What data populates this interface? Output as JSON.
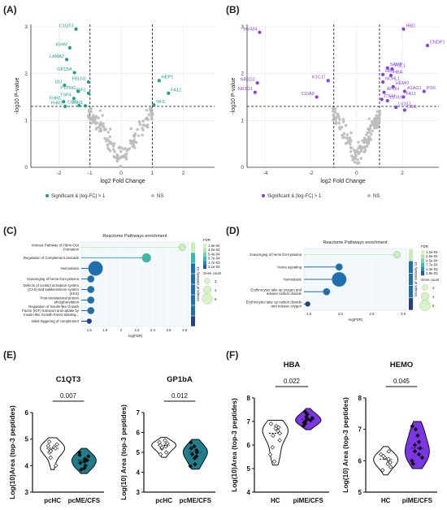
{
  "figure": {
    "panels": {
      "A": {
        "letter": "(A)"
      },
      "B": {
        "letter": "(B)"
      },
      "C": {
        "letter": "(C)"
      },
      "D": {
        "letter": "(D)"
      },
      "E": {
        "letter": "(E)"
      },
      "F": {
        "letter": "(F)"
      }
    }
  },
  "colors": {
    "sig_teal": "#1aa38a",
    "sig_purple": "#8a3ee6",
    "ns_grey": "#bdbdbd",
    "violin_fill": "#1f7d8c",
    "violin_light": "#ffffff",
    "violin_purple": "#7c35e6",
    "lollipop_light": "#c9efb8",
    "lollipop_mid": "#38b9ae",
    "lollipop_dark": "#1f6fb0",
    "lollipop_navy": "#243f8e"
  },
  "chart_data": [
    {
      "id": "A",
      "type": "scatter",
      "xlabel": "log2 Fold Change",
      "ylabel": "-log10 P-value",
      "xlim": [
        -2.9,
        3.0
      ],
      "ylim": [
        0,
        3.05
      ],
      "xticks": [
        -2,
        -1,
        0,
        1,
        2
      ],
      "yticks": [
        0,
        1,
        2,
        3
      ],
      "threshold_x": [
        -1,
        1
      ],
      "threshold_y": 1.3,
      "legend": [
        "Significant & |log-FC| > 1",
        "NS"
      ],
      "legend_position": "bottom",
      "significant": [
        {
          "label": "C1QT3",
          "x": -1.45,
          "y": 2.95
        },
        {
          "label": "IGHM",
          "x": -1.65,
          "y": 2.55
        },
        {
          "label": "LAMA2",
          "x": -1.75,
          "y": 2.3
        },
        {
          "label": "GP1BA",
          "x": -1.5,
          "y": 2.02
        },
        {
          "label": "FBLN1",
          "x": -1.05,
          "y": 1.82
        },
        {
          "label": "IGJ",
          "x": -1.82,
          "y": 1.75
        },
        {
          "label": "PTPRG",
          "x": -1.38,
          "y": 1.62
        },
        {
          "label": "IGF1",
          "x": -1.05,
          "y": 1.58
        },
        {
          "label": "TSP4",
          "x": -1.52,
          "y": 1.47
        },
        {
          "label": "FHR1",
          "x": -1.85,
          "y": 1.4
        },
        {
          "label": "FHR2",
          "x": -1.8,
          "y": 1.3
        },
        {
          "label": "CO5",
          "x": -1.35,
          "y": 1.32
        },
        {
          "label": "ITIH1",
          "x": -1.15,
          "y": 1.31
        },
        {
          "label": "HEP2",
          "x": 1.22,
          "y": 1.85
        },
        {
          "label": "FA12",
          "x": 1.52,
          "y": 1.58
        },
        {
          "label": "NFC",
          "x": 1.05,
          "y": 1.33
        }
      ],
      "ns_cloud": {
        "n": 140
      }
    },
    {
      "id": "B",
      "type": "scatter",
      "xlabel": "log2 Fold Change",
      "ylabel": "-log10 P-value",
      "xlim": [
        -4.8,
        3.6
      ],
      "ylim": [
        0,
        3.05
      ],
      "xticks": [
        -4,
        -2,
        0,
        2
      ],
      "yticks": [
        0,
        1,
        2,
        3
      ],
      "threshold_x": [
        -1,
        1
      ],
      "threshold_y": 1.3,
      "legend": [
        "Significant & |log-FC| > 1",
        "NS"
      ],
      "legend_position": "bottom",
      "significant": [
        {
          "label": "HBD",
          "x": 2.05,
          "y": 2.95
        },
        {
          "label": "HV434",
          "x": -4.25,
          "y": 2.88
        },
        {
          "label": "CNDP1",
          "x": 3.1,
          "y": 2.6
        },
        {
          "label": "SAMP",
          "x": 1.35,
          "y": 2.12
        },
        {
          "label": "FGL1",
          "x": 1.55,
          "y": 2.1
        },
        {
          "label": "HBB",
          "x": 1.15,
          "y": 1.98
        },
        {
          "label": "HBA",
          "x": 1.5,
          "y": 1.96
        },
        {
          "label": "K1C17",
          "x": -1.25,
          "y": 1.85
        },
        {
          "label": "NR1D2",
          "x": -4.35,
          "y": 1.8
        },
        {
          "label": "NCHL1",
          "x": 1.15,
          "y": 1.82
        },
        {
          "label": "HEMO",
          "x": 1.6,
          "y": 1.72
        },
        {
          "label": "PI16",
          "x": 2.95,
          "y": 1.62
        },
        {
          "label": "A1AG1",
          "x": 2.1,
          "y": 1.62
        },
        {
          "label": "APOH",
          "x": 1.2,
          "y": 1.6
        },
        {
          "label": "NR1D1",
          "x": -4.45,
          "y": 1.6
        },
        {
          "label": "S10A9",
          "x": -1.75,
          "y": 1.5
        },
        {
          "label": "FA11",
          "x": 2.05,
          "y": 1.5
        },
        {
          "label": "ITIH4",
          "x": 1.1,
          "y": 1.45
        },
        {
          "label": "LV316",
          "x": 1.35,
          "y": 1.42
        },
        {
          "label": "LV327",
          "x": 1.72,
          "y": 1.28
        },
        {
          "label": "CBG",
          "x": 2.1,
          "y": 1.22
        }
      ],
      "ns_cloud": {
        "n": 150
      }
    },
    {
      "id": "C",
      "type": "lollipop",
      "title": "Reactome Pathways enrichment",
      "xlabel": "-log(FDR)",
      "xlim": [
        1.5,
        2.85
      ],
      "xticks": [
        "1.6",
        "1.8",
        "2",
        "2.2",
        "2.4",
        "2.6",
        "2.8"
      ],
      "xtick_values": [
        1.6,
        1.8,
        2.0,
        2.2,
        2.4,
        2.6,
        2.8
      ],
      "legend_fdr_title": "FDR",
      "legend_fdr_values": [
        "1.6e-04",
        "3.0e-04",
        "5.4e-04",
        "9.7e-04",
        "1.7e-03",
        "3.1e-03"
      ],
      "legend_count_title": "Gene count",
      "legend_count_values": [
        "2",
        "4",
        "6"
      ],
      "side_label": "Groups of similarity 13",
      "terms": [
        {
          "label": "Intrinsic Pathway of Fibrin Clot\nFormation",
          "x": 2.77,
          "count": 2
        },
        {
          "label": "Regulation of Complement cascade",
          "x": 2.32,
          "count": 3
        },
        {
          "label": "Hemostasis",
          "x": 1.68,
          "count": 6
        },
        {
          "label": "Scavenging of heme from plasma",
          "x": 1.62,
          "count": 2
        },
        {
          "label": "Defects of contact activation system\n(CAS) and kallikrein/kinin system\n(KKS)",
          "x": 1.62,
          "count": 2
        },
        {
          "label": "Post-translational protein\nphosphorylation",
          "x": 1.62,
          "count": 2
        },
        {
          "label": "Regulation of Insulin-like Growth\nFactor (IGF) transport and uptake by\nInsulin-like Growth Factor Binding...",
          "x": 1.62,
          "count": 2
        },
        {
          "label": "Initial triggering of complement",
          "x": 1.6,
          "count": 1
        }
      ]
    },
    {
      "id": "D",
      "type": "lollipop",
      "title": "Reactome Pathways enrichment",
      "xlabel": "-log(FDR)",
      "xlim": [
        1.42,
        3.05
      ],
      "xticks": [
        "1.5",
        "2.0",
        "2.5",
        "3.0"
      ],
      "xtick_values": [
        1.5,
        2.0,
        2.5,
        3.0
      ],
      "legend_fdr_title": "FDR",
      "legend_fdr_values": [
        "1.2e-04",
        "2.6e-04",
        "4.5e-04",
        "7.7e-04",
        "1.4e-03",
        "2.8e-03"
      ],
      "legend_count_title": "Gene count",
      "legend_count_values": [
        "2",
        "4",
        "6"
      ],
      "side_label": "Groups of similarity 13",
      "terms": [
        {
          "label": "Scavenging of heme from plasma",
          "x": 2.9,
          "count": 2
        },
        {
          "label": "Heme signaling",
          "x": 1.98,
          "count": 2
        },
        {
          "label": "Hemostasis",
          "x": 1.98,
          "count": 6
        },
        {
          "label": "Erythrocytes take up oxygen and\nrelease carbon dioxide",
          "x": 1.78,
          "count": 2
        },
        {
          "label": "Erythrocytes take up carbon dioxide\nand release oxygen",
          "x": 1.48,
          "count": 1
        }
      ]
    },
    {
      "id": "E1",
      "type": "violin",
      "title": "C1QT3",
      "ylabel": "Log(10)Area (top-3 peptides)",
      "ylim": [
        3,
        6
      ],
      "yticks": [
        3,
        4,
        5,
        6
      ],
      "categories": [
        "pcHC",
        "pcME/CFS"
      ],
      "pvalue": "0.007",
      "groups": [
        {
          "points": [
            4.7,
            4.8,
            4.6,
            4.75,
            4.5,
            4.65,
            4.9,
            4.3,
            4.0,
            4.55
          ]
        },
        {
          "points": [
            4.1,
            4.2,
            4.0,
            4.35,
            3.9,
            4.25,
            4.5,
            4.15,
            3.85,
            4.4
          ]
        }
      ]
    },
    {
      "id": "E2",
      "type": "violin",
      "title": "GP1bA",
      "ylabel": "Log(10) Area (top-3 peptides)",
      "ylim": [
        3,
        7
      ],
      "yticks": [
        3,
        4,
        5,
        6,
        7
      ],
      "categories": [
        "pcHC",
        "pcME/CFS"
      ],
      "pvalue": "0.012",
      "groups": [
        {
          "points": [
            5.3,
            5.4,
            5.5,
            5.2,
            5.35,
            5.45,
            5.0,
            4.9,
            5.6,
            5.25
          ]
        },
        {
          "points": [
            4.9,
            5.1,
            4.7,
            5.2,
            4.4,
            5.0,
            4.8,
            5.3,
            4.3,
            5.5
          ]
        }
      ]
    },
    {
      "id": "F1",
      "type": "violin",
      "title": "HBA",
      "ylabel": "Log(10)Area (top-3 peptides)",
      "ylim": [
        4,
        8
      ],
      "yticks": [
        4,
        5,
        6,
        7,
        8
      ],
      "categories": [
        "HC",
        "piME/CFS"
      ],
      "pvalue": "0.022",
      "groups": [
        {
          "points": [
            6.6,
            6.8,
            6.5,
            6.7,
            6.9,
            6.2,
            5.9,
            5.6,
            5.3,
            6.4,
            6.75
          ]
        },
        {
          "points": [
            7.0,
            7.1,
            6.9,
            7.2,
            7.3,
            7.05,
            6.95,
            7.4,
            7.15,
            6.8
          ]
        }
      ]
    },
    {
      "id": "F2",
      "type": "violin",
      "title": "HEMO",
      "ylabel": "Log(10) Area (top-3 peptides)",
      "ylim": [
        5,
        8
      ],
      "yticks": [
        5,
        6,
        7,
        8
      ],
      "categories": [
        "HC",
        "piME/CFS"
      ],
      "pvalue": "0.045",
      "groups": [
        {
          "points": [
            6.0,
            6.1,
            5.9,
            6.05,
            6.2,
            5.8,
            6.3,
            5.95,
            5.7,
            6.15
          ]
        },
        {
          "points": [
            6.3,
            6.5,
            6.0,
            6.8,
            7.0,
            6.4,
            6.2,
            5.9,
            6.6,
            7.1,
            6.1
          ]
        }
      ]
    }
  ]
}
